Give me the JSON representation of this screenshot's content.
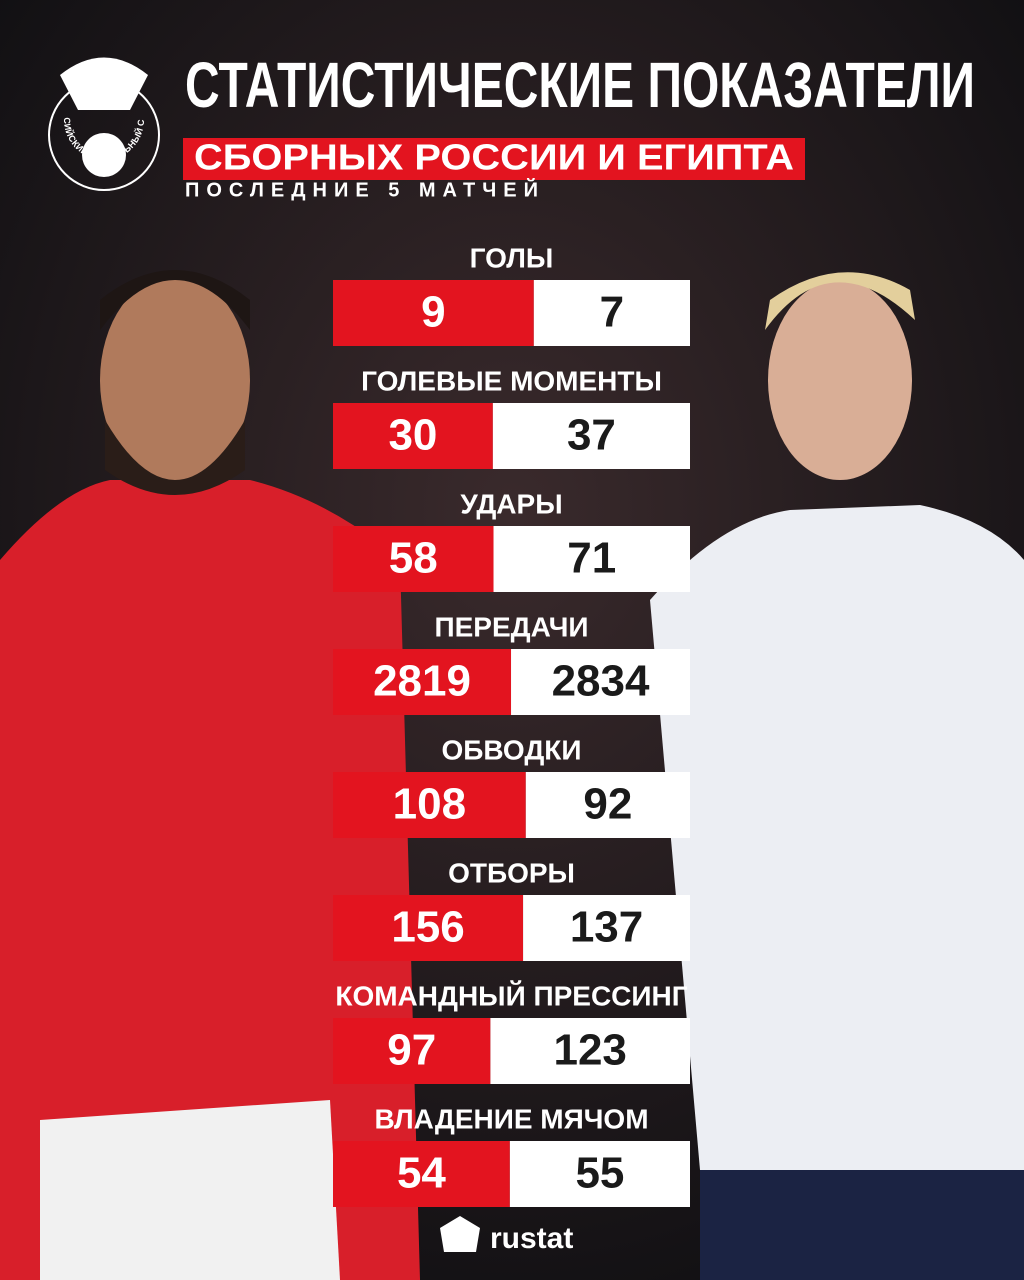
{
  "header": {
    "title": "СТАТИСТИЧЕСКИЕ ПОКАЗАТЕЛИ",
    "subtitle": "СБОРНЫХ РОССИИ И ЕГИПТА",
    "period": "ПОСЛЕДНИЕ 5 МАТЧЕЙ",
    "logo_text": "РОССИЙСКИЙ ФУТБОЛЬНЫЙ СОЮЗ"
  },
  "stats": [
    {
      "label": "ГОЛЫ",
      "left": 9,
      "right": 7
    },
    {
      "label": "ГОЛЕВЫЕ МОМЕНТЫ",
      "left": 30,
      "right": 37
    },
    {
      "label": "УДАРЫ",
      "left": 58,
      "right": 71
    },
    {
      "label": "ПЕРЕДАЧИ",
      "left": 2819,
      "right": 2834
    },
    {
      "label": "ОБВОДКИ",
      "left": 108,
      "right": 92
    },
    {
      "label": "ОТБОРЫ",
      "left": 156,
      "right": 137
    },
    {
      "label": "КОМАНДНЫЙ ПРЕССИНГ",
      "left": 97,
      "right": 123
    },
    {
      "label": "ВЛАДЕНИЕ МЯЧОМ",
      "left": 54,
      "right": 55
    }
  ],
  "footer": {
    "brand": "rustat"
  }
}
